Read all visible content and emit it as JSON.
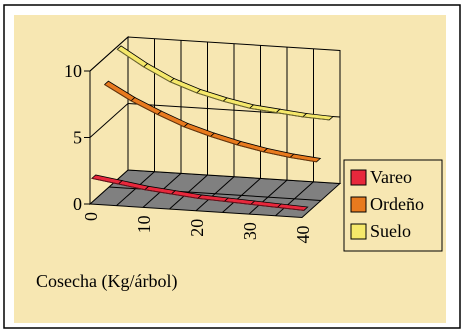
{
  "chart_data": {
    "type": "line",
    "style": "3d-ribbon",
    "title": "",
    "xlabel": "Cosecha (Kg/árbol)",
    "ylabel": "",
    "x": [
      0,
      5,
      10,
      15,
      20,
      25,
      30,
      35,
      40
    ],
    "x_tick_labels": [
      "0",
      "10",
      "20",
      "30",
      "40"
    ],
    "y_tick_labels": [
      "0",
      "5",
      "10"
    ],
    "ylim": [
      0,
      10
    ],
    "grid": true,
    "legend_position": "right",
    "series": [
      {
        "name": "Vareo",
        "color": "#e8283c",
        "values": [
          1.8,
          1.5,
          1.2,
          1.0,
          0.8,
          0.7,
          0.6,
          0.5,
          0.4
        ]
      },
      {
        "name": "Ordeño",
        "color": "#e87a1e",
        "values": [
          8.0,
          6.9,
          6.0,
          5.2,
          4.6,
          4.1,
          3.7,
          3.4,
          3.2
        ]
      },
      {
        "name": "Suelo",
        "color": "#f5e86a",
        "values": [
          9.8,
          8.6,
          7.6,
          6.9,
          6.4,
          6.0,
          5.8,
          5.6,
          5.5
        ]
      }
    ],
    "colors": {
      "background": "#f7e7b2",
      "floor": "#808080",
      "wall_line": "#000000",
      "plot_area_back": "#f7e7b2"
    }
  }
}
